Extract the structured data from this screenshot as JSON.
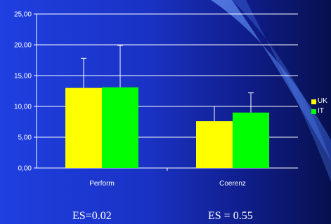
{
  "chart_data": {
    "type": "bar",
    "categories": [
      "Perform",
      "Coerenz"
    ],
    "series": [
      {
        "name": "UK",
        "color": "#ffff00",
        "values": [
          13.0,
          7.6
        ],
        "error": [
          4.8,
          2.4
        ]
      },
      {
        "name": "IT",
        "color": "#00ff00",
        "values": [
          13.1,
          9.0
        ],
        "error": [
          6.8,
          3.2
        ]
      }
    ],
    "ylim": [
      0,
      25
    ],
    "yticks": [
      "0,00",
      "5,00",
      "10,00",
      "15,00",
      "20,00",
      "25,00"
    ],
    "ytick_values": [
      0,
      5,
      10,
      15,
      20,
      25
    ],
    "grid": true,
    "legend_placement": "right"
  },
  "annotations": {
    "es_perform": "ES=0.02",
    "es_coerenz": "ES = 0.55"
  }
}
